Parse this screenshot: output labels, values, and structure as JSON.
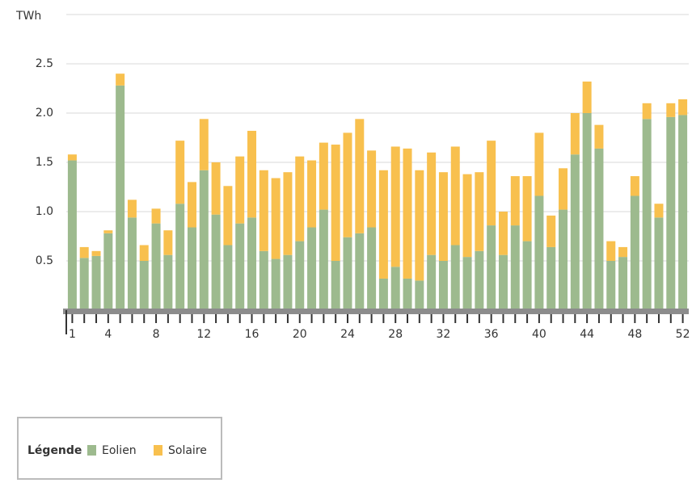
{
  "chart_data": {
    "type": "bar",
    "stacked": true,
    "y_label": "TWh",
    "categories": [
      1,
      null,
      null,
      4,
      null,
      null,
      null,
      8,
      null,
      null,
      null,
      12,
      null,
      null,
      null,
      16,
      null,
      null,
      null,
      20,
      null,
      null,
      null,
      24,
      null,
      null,
      null,
      28,
      null,
      null,
      null,
      32,
      null,
      null,
      null,
      36,
      null,
      null,
      null,
      40,
      null,
      null,
      null,
      44,
      null,
      null,
      null,
      48,
      null,
      null,
      null,
      52
    ],
    "series": [
      {
        "name": "Eolien",
        "color": "#9dba8e",
        "values": [
          1.52,
          0.53,
          0.55,
          0.78,
          2.28,
          0.94,
          0.5,
          0.88,
          0.56,
          1.08,
          0.84,
          1.42,
          0.97,
          0.66,
          0.88,
          0.94,
          0.6,
          0.52,
          0.56,
          0.7,
          0.84,
          1.02,
          0.5,
          0.74,
          0.78,
          0.84,
          0.32,
          0.44,
          0.32,
          0.3,
          0.56,
          0.5,
          0.66,
          0.54,
          0.6,
          0.86,
          0.56,
          0.86,
          0.7,
          1.16,
          0.64,
          1.02,
          1.58,
          2.0,
          1.64,
          0.5,
          0.54,
          1.16,
          1.94,
          0.94,
          1.96,
          1.98
        ]
      },
      {
        "name": "Solaire",
        "color": "#f8c04e",
        "values": [
          0.06,
          0.11,
          0.05,
          0.03,
          0.12,
          0.18,
          0.16,
          0.15,
          0.25,
          0.64,
          0.46,
          0.52,
          0.53,
          0.6,
          0.68,
          0.88,
          0.82,
          0.82,
          0.84,
          0.86,
          0.68,
          0.68,
          1.18,
          1.06,
          1.16,
          0.78,
          1.1,
          1.22,
          1.32,
          1.12,
          1.04,
          0.9,
          1.0,
          0.84,
          0.8,
          0.86,
          0.44,
          0.5,
          0.66,
          0.64,
          0.32,
          0.42,
          0.42,
          0.32,
          0.24,
          0.2,
          0.1,
          0.2,
          0.16,
          0.14,
          0.14,
          0.16
        ]
      }
    ],
    "ylim": [
      0,
      3
    ],
    "yticks": [
      0.5,
      {
        "value": 1,
        "label": "1.0"
      },
      1.5,
      {
        "value": 2,
        "label": "2.0"
      },
      2.5
    ],
    "grid": true,
    "legend_title": "Légende",
    "legend_position": "bottom-left"
  }
}
